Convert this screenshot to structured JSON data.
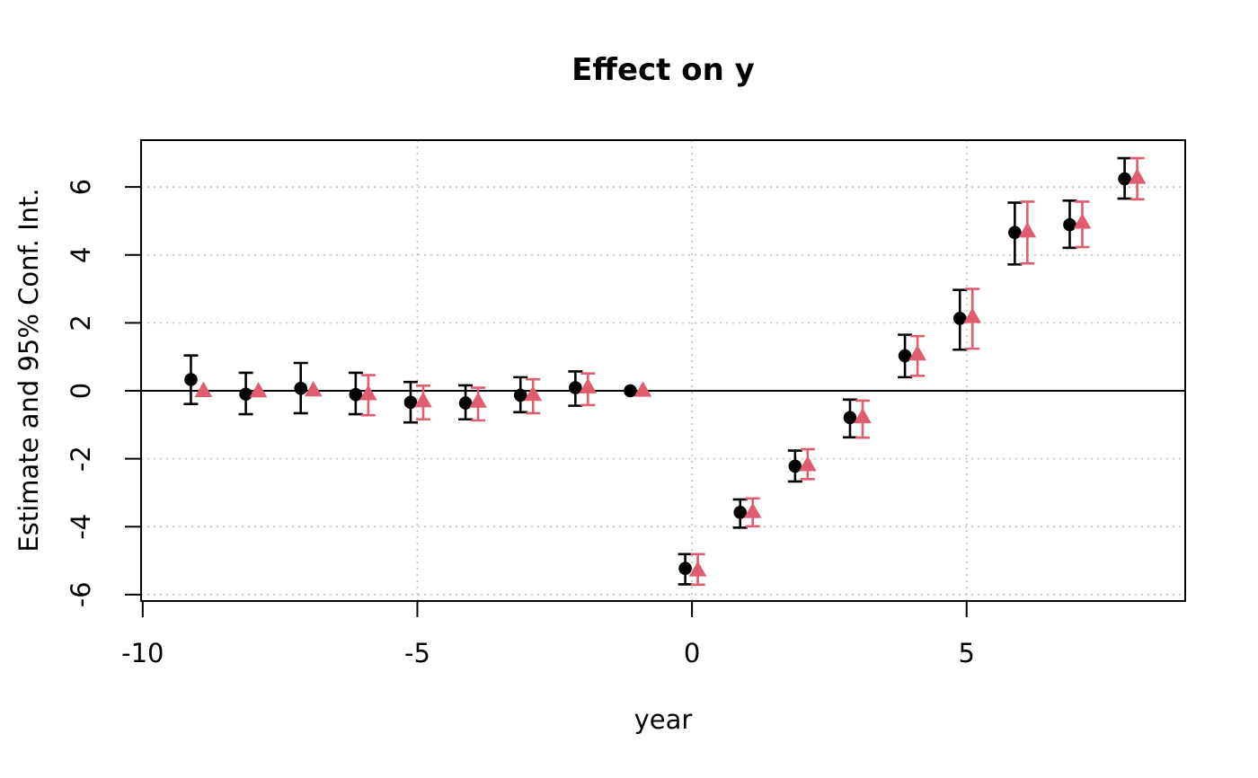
{
  "title": "Effect on y",
  "colors": {
    "series_black": "#000000",
    "series_pink": "#e05c6f",
    "grid": "#c6c6c6",
    "axis": "#000000",
    "background": "#ffffff"
  },
  "chart_data": {
    "type": "scatter",
    "title": "Effect on y",
    "xlabel": "year",
    "ylabel": "Estimate and 95% Conf. Int.",
    "grid": true,
    "legend": "none",
    "zero_line": true,
    "xlim": [
      -10.03,
      8.98
    ],
    "ylim": [
      -6.19,
      7.38
    ],
    "x_ticks": [
      -10,
      -5,
      0,
      5
    ],
    "x_tick_labels": [
      "-10",
      "-5",
      "0",
      "5"
    ],
    "y_ticks": [
      -6,
      -4,
      -2,
      0,
      2,
      4,
      6
    ],
    "y_tick_labels": [
      "-6",
      "-4",
      "-2",
      "0",
      "2",
      "4",
      "6"
    ],
    "x": [
      -9,
      -8,
      -7,
      -6,
      -5,
      -4,
      -3,
      -2,
      -1,
      0,
      1,
      2,
      3,
      4,
      5,
      6,
      7,
      8
    ],
    "series": [
      {
        "name": "estimate-circles",
        "marker": "circle",
        "color": "#000000",
        "dodge": -7.5,
        "values": [
          0.33,
          -0.1,
          0.07,
          -0.11,
          -0.34,
          -0.36,
          -0.13,
          0.09,
          0.0,
          -5.23,
          -3.58,
          -2.22,
          -0.79,
          1.03,
          2.13,
          4.66,
          4.89,
          6.24
        ],
        "ci_low": [
          -0.39,
          -0.69,
          -0.66,
          -0.69,
          -0.93,
          -0.84,
          -0.63,
          -0.44,
          null,
          -5.7,
          -4.03,
          -2.67,
          -1.37,
          0.4,
          1.21,
          3.72,
          4.21,
          5.66
        ],
        "ci_high": [
          1.04,
          0.53,
          0.82,
          0.53,
          0.26,
          0.16,
          0.4,
          0.57,
          null,
          -4.81,
          -3.2,
          -1.76,
          -0.26,
          1.65,
          2.97,
          5.54,
          5.6,
          6.85
        ]
      },
      {
        "name": "estimate-triangles",
        "marker": "triangle",
        "color": "#e05c6f",
        "dodge": 6.5,
        "values": [
          0.02,
          0.01,
          0.04,
          -0.07,
          -0.28,
          -0.29,
          -0.09,
          0.13,
          0.03,
          -5.26,
          -3.54,
          -2.16,
          -0.75,
          1.1,
          2.2,
          4.72,
          4.98,
          6.3
        ],
        "ci_low": [
          null,
          null,
          null,
          -0.72,
          -0.84,
          -0.87,
          -0.66,
          -0.42,
          null,
          -5.71,
          -3.99,
          -2.6,
          -1.38,
          0.44,
          1.24,
          3.75,
          4.23,
          5.64
        ],
        "ci_high": [
          null,
          null,
          null,
          0.46,
          0.15,
          0.09,
          0.34,
          0.51,
          null,
          -4.81,
          -3.17,
          -1.72,
          -0.29,
          1.61,
          3.0,
          5.57,
          5.57,
          6.85
        ]
      }
    ]
  }
}
